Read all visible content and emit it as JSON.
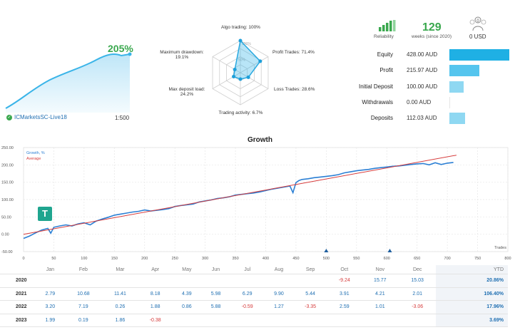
{
  "summary": {
    "growth_percent": "205%",
    "account_name": "ICMarketsSC-Live18",
    "leverage": "1:500"
  },
  "radar": {
    "axes": [
      {
        "label": "Algo trading: 100%",
        "value": 1.0
      },
      {
        "label": "Profit Trades: 71.4%",
        "value": 0.714
      },
      {
        "label": "Loss Trades: 28.6%",
        "value": 0.286
      },
      {
        "label": "Trading activity: 6.7%",
        "value": 0.067
      },
      {
        "label": "Max deposit load:",
        "value2": "24.2%",
        "value": 0.242
      },
      {
        "label": "Maximum drawdown:",
        "value2": "19.1%",
        "value": 0.191
      }
    ],
    "ring_labels": [
      "100%",
      "50%"
    ]
  },
  "stats": {
    "reliability_label": "Reliability",
    "weeks_value": "129",
    "weeks_label": "weeks (since 2020)",
    "subscribers_value": "0",
    "usd_label": "0 USD",
    "rows": [
      {
        "label": "Equity",
        "value": "428.00 AUD",
        "amount": 428.0
      },
      {
        "label": "Profit",
        "value": "215.97 AUD",
        "amount": 215.97
      },
      {
        "label": "Initial Deposit",
        "value": "100.00 AUD",
        "amount": 100.0
      },
      {
        "label": "Withdrawals",
        "value": "0.00 AUD",
        "amount": 0.0
      },
      {
        "label": "Deposits",
        "value": "112.03 AUD",
        "amount": 112.03
      }
    ],
    "colors": {
      "bar_primary": "#1fb0e4",
      "bar_light": "#8fd8f2",
      "bar_mid": "#55c5ee"
    }
  },
  "chart_data": {
    "type": "line",
    "title": "Growth",
    "xlabel": "Trades",
    "ylabel": "",
    "xlim": [
      0,
      800
    ],
    "ylim": [
      -50,
      250
    ],
    "x_ticks": [
      "0",
      "50",
      "100",
      "150",
      "200",
      "250",
      "300",
      "350",
      "400",
      "450",
      "500",
      "550",
      "600",
      "650",
      "700",
      "750",
      "800"
    ],
    "y_ticks": [
      "250.00",
      "200.00",
      "150.00",
      "100.00",
      "50.00",
      "0.00",
      "-50.00"
    ],
    "legend": [
      "Growth, %",
      "Average"
    ],
    "series": [
      {
        "name": "Growth, %",
        "color": "#2b7fd4",
        "x": [
          0,
          10,
          20,
          30,
          40,
          45,
          50,
          60,
          70,
          80,
          90,
          100,
          110,
          120,
          130,
          140,
          150,
          160,
          170,
          180,
          190,
          200,
          210,
          220,
          230,
          240,
          250,
          260,
          270,
          280,
          290,
          300,
          310,
          320,
          330,
          340,
          350,
          360,
          370,
          380,
          390,
          400,
          410,
          420,
          430,
          440,
          445,
          450,
          455,
          460,
          470,
          480,
          490,
          500,
          510,
          520,
          530,
          540,
          550,
          560,
          570,
          580,
          590,
          600,
          610,
          620,
          630,
          640,
          650,
          660,
          670,
          680,
          690,
          700,
          710
        ],
        "y": [
          -12,
          -5,
          4,
          12,
          17,
          3,
          20,
          24,
          27,
          24,
          30,
          33,
          27,
          38,
          44,
          49,
          55,
          58,
          61,
          64,
          66,
          70,
          67,
          69,
          71,
          74,
          80,
          83,
          85,
          87,
          93,
          96,
          99,
          103,
          105,
          108,
          113,
          115,
          117,
          119,
          122,
          126,
          130,
          133,
          136,
          139,
          120,
          149,
          155,
          158,
          160,
          163,
          165,
          167,
          169,
          172,
          177,
          180,
          183,
          185,
          187,
          190,
          192,
          194,
          196,
          197,
          199,
          201,
          203,
          204,
          200,
          206,
          201,
          205,
          207
        ]
      },
      {
        "name": "Average",
        "color": "#d63b3b",
        "x": [
          0,
          715
        ],
        "y": [
          0,
          228
        ]
      }
    ],
    "markers_x": [
      500,
      605
    ]
  },
  "table": {
    "headers": [
      "",
      "Jan",
      "Feb",
      "Mar",
      "Apr",
      "May",
      "Jun",
      "Jul",
      "Aug",
      "Sep",
      "Oct",
      "Nov",
      "Dec",
      "YTD"
    ],
    "rows": [
      {
        "year": "2020",
        "cells": [
          "",
          "",
          "",
          "",
          "",
          "",
          "",
          "",
          "",
          "-9.24",
          "15.77",
          "15.03"
        ],
        "ytd": "20.86%"
      },
      {
        "year": "2021",
        "cells": [
          "2.79",
          "10.68",
          "11.41",
          "8.18",
          "4.39",
          "5.98",
          "6.29",
          "9.90",
          "5.44",
          "3.91",
          "4.21",
          "2.01"
        ],
        "ytd": "106.40%"
      },
      {
        "year": "2022",
        "cells": [
          "3.20",
          "7.19",
          "0.26",
          "1.88",
          "0.86",
          "5.88",
          "-0.59",
          "1.27",
          "-3.35",
          "2.59",
          "1.01",
          "-3.06"
        ],
        "ytd": "17.96%"
      },
      {
        "year": "2023",
        "cells": [
          "1.99",
          "0.19",
          "1.86",
          "-0.38",
          "",
          "",
          "",
          "",
          "",
          "",
          "",
          ""
        ],
        "ytd": "3.69%"
      }
    ]
  }
}
